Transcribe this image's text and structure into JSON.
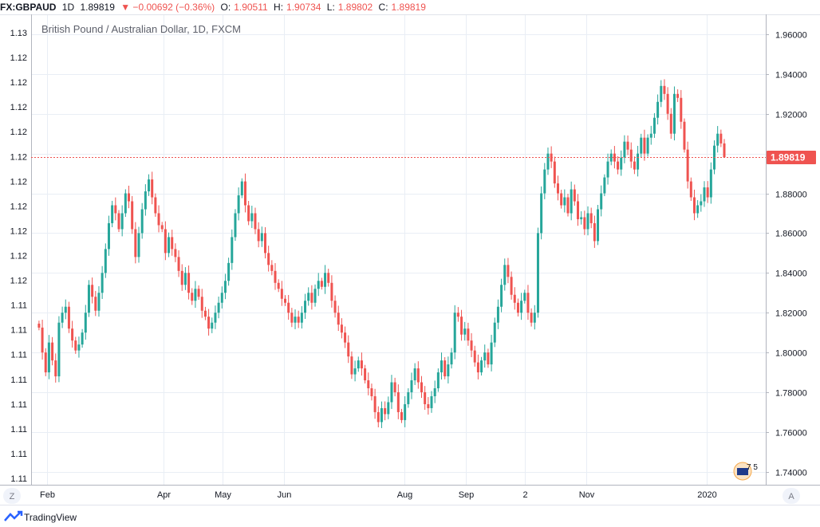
{
  "header": {
    "symbol": "FX:GBPAUD",
    "interval": "1D",
    "last": "1.89819",
    "change": "▼ −0.00692 (−0.36%)",
    "open_label": "O:",
    "open": "1.90511",
    "high_label": "H:",
    "high": "1.90734",
    "low_label": "L:",
    "low": "1.89802",
    "close_label": "C:",
    "close": "1.89819"
  },
  "footer": {
    "logo_text": "TradingView",
    "zoom_button": "Z",
    "auto_button": "A"
  },
  "badge": {
    "text": "7 5"
  },
  "colors": {
    "up": "#26a69a",
    "down": "#ef5350",
    "grid": "#e9eef5",
    "axis": "#787b86",
    "price_line": "#ef5350"
  },
  "chart_data": {
    "type": "candlestick",
    "title": "British Pound / Australian Dollar, 1D, FXCM",
    "last_price_label": "1.89819",
    "last_price": 1.89819,
    "y_right": {
      "ticks": [
        1.74,
        1.76,
        1.78,
        1.8,
        1.82,
        1.84,
        1.86,
        1.88,
        1.9,
        1.92,
        1.94,
        1.96
      ],
      "tick_labels": [
        "1.74000",
        "1.76000",
        "1.78000",
        "1.80000",
        "1.82000",
        "1.84000",
        "1.86000",
        "1.88000",
        "1.90000",
        "1.92000",
        "1.94000",
        "1.96000"
      ],
      "range": [
        1.7335,
        1.97
      ]
    },
    "y_left": {
      "tick_labels": [
        "1.13",
        "1.12",
        "1.12",
        "1.12",
        "1.12",
        "1.12",
        "1.12",
        "1.12",
        "1.12",
        "1.12",
        "1.12",
        "1.11",
        "1.11",
        "1.11",
        "1.11",
        "1.11",
        "1.11",
        "1.11",
        "1.11"
      ]
    },
    "x_ticks": [
      {
        "date": "2019-02-01",
        "label": "Feb"
      },
      {
        "date": "2019-04-01",
        "label": "Apr"
      },
      {
        "date": "2019-05-01",
        "label": "May"
      },
      {
        "date": "2019-06-01",
        "label": "Jun"
      },
      {
        "date": "2019-08-01",
        "label": "Aug"
      },
      {
        "date": "2019-09-01",
        "label": "Sep"
      },
      {
        "date": "2019-10-01",
        "label": "2"
      },
      {
        "date": "2019-11-01",
        "label": "Nov"
      },
      {
        "date": "2020-01-01",
        "label": "2020"
      }
    ],
    "x_range": [
      "2019-01-24",
      "2020-01-31"
    ],
    "start_date": "2019-01-28",
    "end_date": "2020-01-10",
    "daily_closes": [
      1.8125,
      1.8,
      1.79,
      1.805,
      1.796,
      1.788,
      1.815,
      1.82,
      1.823,
      1.812,
      1.806,
      1.801,
      1.804,
      1.81,
      1.82,
      1.834,
      1.828,
      1.821,
      1.83,
      1.84,
      1.852,
      1.865,
      1.874,
      1.87,
      1.862,
      1.87,
      1.88,
      1.876,
      1.862,
      1.848,
      1.86,
      1.872,
      1.881,
      1.887,
      1.878,
      1.87,
      1.864,
      1.862,
      1.85,
      1.858,
      1.852,
      1.848,
      1.841,
      1.834,
      1.84,
      1.83,
      1.826,
      1.832,
      1.828,
      1.821,
      1.818,
      1.812,
      1.815,
      1.82,
      1.825,
      1.83,
      1.836,
      1.845,
      1.858,
      1.87,
      1.879,
      1.886,
      1.874,
      1.866,
      1.87,
      1.862,
      1.856,
      1.86,
      1.85,
      1.844,
      1.841,
      1.835,
      1.832,
      1.827,
      1.825,
      1.82,
      1.815,
      1.818,
      1.815,
      1.82,
      1.826,
      1.83,
      1.825,
      1.832,
      1.836,
      1.833,
      1.84,
      1.835,
      1.826,
      1.82,
      1.814,
      1.81,
      1.805,
      1.798,
      1.789,
      1.792,
      1.796,
      1.792,
      1.786,
      1.782,
      1.778,
      1.77,
      1.765,
      1.772,
      1.769,
      1.775,
      1.785,
      1.78,
      1.77,
      1.766,
      1.774,
      1.78,
      1.786,
      1.792,
      1.785,
      1.78,
      1.774,
      1.772,
      1.778,
      1.782,
      1.79,
      1.796,
      1.788,
      1.794,
      1.8,
      1.82,
      1.818,
      1.809,
      1.812,
      1.806,
      1.801,
      1.795,
      1.79,
      1.796,
      1.8,
      1.794,
      1.805,
      1.815,
      1.823,
      1.834,
      1.844,
      1.838,
      1.829,
      1.825,
      1.82,
      1.826,
      1.83,
      1.82,
      1.815,
      1.82,
      1.86,
      1.88,
      1.892,
      1.9,
      1.896,
      1.885,
      1.88,
      1.874,
      1.878,
      1.87,
      1.882,
      1.876,
      1.867,
      1.868,
      1.862,
      1.87,
      1.865,
      1.856,
      1.872,
      1.88,
      1.888,
      1.896,
      1.9,
      1.896,
      1.892,
      1.898,
      1.906,
      1.902,
      1.896,
      1.892,
      1.9,
      1.908,
      1.9,
      1.908,
      1.91,
      1.918,
      1.926,
      1.934,
      1.93,
      1.92,
      1.91,
      1.93,
      1.928,
      1.916,
      1.902,
      1.886,
      1.878,
      1.87,
      1.874,
      1.876,
      1.883,
      1.878,
      1.892,
      1.904,
      1.91,
      1.9051,
      1.8982
    ],
    "ohlc_last": {
      "open": 1.90511,
      "high": 1.90734,
      "low": 1.89802,
      "close": 1.89819
    }
  }
}
